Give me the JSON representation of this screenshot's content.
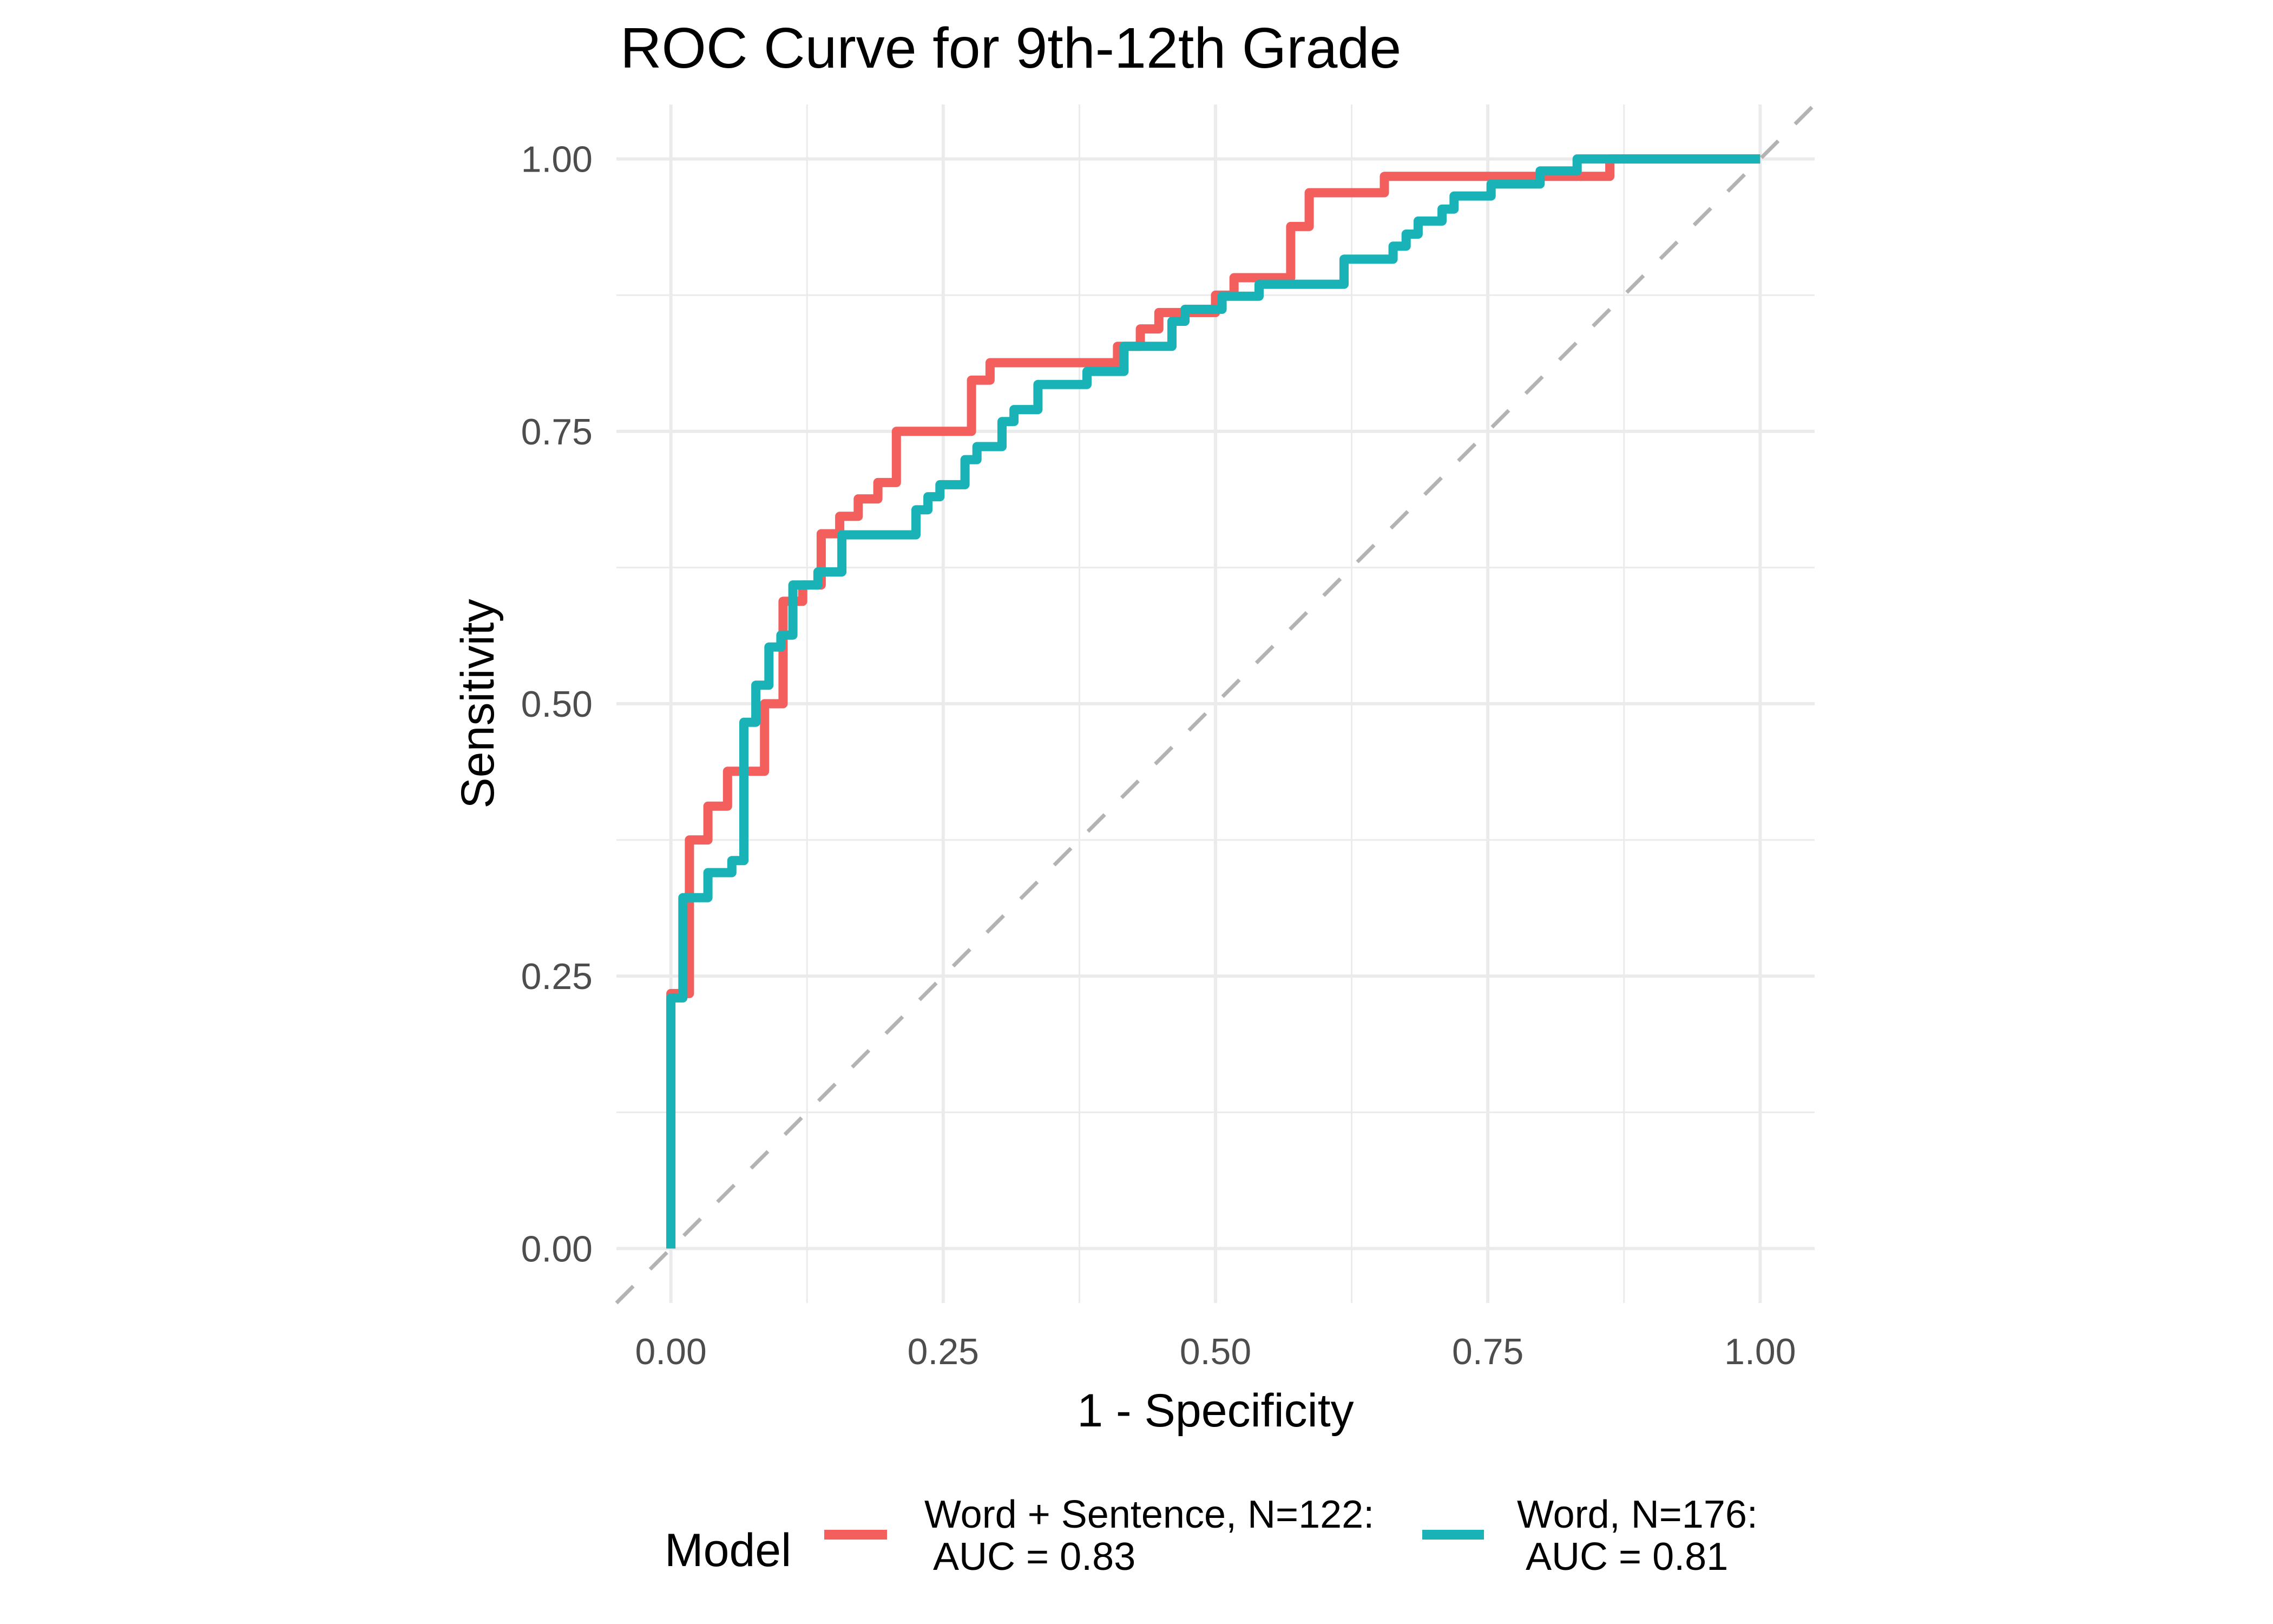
{
  "chart_data": {
    "type": "line",
    "subtype": "step",
    "title": "ROC Curve for 9th-12th Grade",
    "xlabel": "1 - Specificity",
    "ylabel": "Sensitivity",
    "xlim": [
      -0.05,
      1.05
    ],
    "ylim": [
      -0.05,
      1.05
    ],
    "grid": true,
    "x_ticks": [
      0,
      0.25,
      0.5,
      0.75,
      1
    ],
    "x_tick_labels": [
      "0.00",
      "0.25",
      "0.50",
      "0.75",
      "1.00"
    ],
    "y_ticks": [
      0,
      0.25,
      0.5,
      0.75,
      1
    ],
    "y_tick_labels": [
      "0.00",
      "0.25",
      "0.50",
      "0.75",
      "1.00"
    ],
    "reference_line": {
      "from": [
        -0.05,
        -0.05
      ],
      "to": [
        1.05,
        1.05
      ],
      "style": "dashed",
      "color": "#B3B3B3"
    },
    "legend": {
      "title": "Model",
      "placement": "bottom",
      "entries": [
        {
          "line1": "Word + Sentence, N=122:",
          "line2": " AUC = 0.83",
          "color": "#F35F5C"
        },
        {
          "line1": "Word, N=176:",
          "line2": " AUC = 0.81",
          "color": "#19B3B7"
        }
      ]
    },
    "series": [
      {
        "name": "Word + Sentence, N=122",
        "auc": 0.83,
        "color": "#F35F5C",
        "points": [
          [
            0,
            0
          ],
          [
            0,
            0.234
          ],
          [
            0.017,
            0.234
          ],
          [
            0.017,
            0.375
          ],
          [
            0.034,
            0.375
          ],
          [
            0.034,
            0.406
          ],
          [
            0.052,
            0.406
          ],
          [
            0.052,
            0.438
          ],
          [
            0.086,
            0.438
          ],
          [
            0.086,
            0.5
          ],
          [
            0.103,
            0.5
          ],
          [
            0.103,
            0.594
          ],
          [
            0.121,
            0.594
          ],
          [
            0.121,
            0.609
          ],
          [
            0.138,
            0.609
          ],
          [
            0.138,
            0.656
          ],
          [
            0.155,
            0.656
          ],
          [
            0.155,
            0.672
          ],
          [
            0.172,
            0.672
          ],
          [
            0.172,
            0.688
          ],
          [
            0.19,
            0.688
          ],
          [
            0.19,
            0.703
          ],
          [
            0.207,
            0.703
          ],
          [
            0.207,
            0.75
          ],
          [
            0.276,
            0.75
          ],
          [
            0.276,
            0.797
          ],
          [
            0.293,
            0.797
          ],
          [
            0.293,
            0.813
          ],
          [
            0.41,
            0.813
          ],
          [
            0.41,
            0.828
          ],
          [
            0.431,
            0.828
          ],
          [
            0.431,
            0.844
          ],
          [
            0.448,
            0.844
          ],
          [
            0.448,
            0.859
          ],
          [
            0.5,
            0.859
          ],
          [
            0.5,
            0.875
          ],
          [
            0.517,
            0.875
          ],
          [
            0.517,
            0.891
          ],
          [
            0.569,
            0.891
          ],
          [
            0.569,
            0.938
          ],
          [
            0.586,
            0.938
          ],
          [
            0.586,
            0.969
          ],
          [
            0.655,
            0.969
          ],
          [
            0.655,
            0.984
          ],
          [
            0.862,
            0.984
          ],
          [
            0.862,
            1.0
          ],
          [
            1.0,
            1.0
          ]
        ]
      },
      {
        "name": "Word, N=176",
        "auc": 0.81,
        "color": "#19B3B7",
        "points": [
          [
            0,
            0
          ],
          [
            0,
            0.23
          ],
          [
            0.011,
            0.23
          ],
          [
            0.011,
            0.322
          ],
          [
            0.034,
            0.322
          ],
          [
            0.034,
            0.345
          ],
          [
            0.056,
            0.345
          ],
          [
            0.056,
            0.356
          ],
          [
            0.067,
            0.356
          ],
          [
            0.067,
            0.483
          ],
          [
            0.078,
            0.483
          ],
          [
            0.078,
            0.517
          ],
          [
            0.09,
            0.517
          ],
          [
            0.09,
            0.552
          ],
          [
            0.101,
            0.552
          ],
          [
            0.101,
            0.563
          ],
          [
            0.112,
            0.563
          ],
          [
            0.112,
            0.609
          ],
          [
            0.135,
            0.609
          ],
          [
            0.135,
            0.621
          ],
          [
            0.157,
            0.621
          ],
          [
            0.157,
            0.655
          ],
          [
            0.225,
            0.655
          ],
          [
            0.225,
            0.678
          ],
          [
            0.236,
            0.678
          ],
          [
            0.236,
            0.69
          ],
          [
            0.247,
            0.69
          ],
          [
            0.247,
            0.701
          ],
          [
            0.27,
            0.701
          ],
          [
            0.27,
            0.724
          ],
          [
            0.281,
            0.724
          ],
          [
            0.281,
            0.736
          ],
          [
            0.304,
            0.736
          ],
          [
            0.304,
            0.759
          ],
          [
            0.315,
            0.759
          ],
          [
            0.315,
            0.77
          ],
          [
            0.337,
            0.77
          ],
          [
            0.337,
            0.793
          ],
          [
            0.382,
            0.793
          ],
          [
            0.382,
            0.805
          ],
          [
            0.416,
            0.805
          ],
          [
            0.416,
            0.828
          ],
          [
            0.46,
            0.828
          ],
          [
            0.46,
            0.851
          ],
          [
            0.472,
            0.851
          ],
          [
            0.472,
            0.862
          ],
          [
            0.506,
            0.862
          ],
          [
            0.506,
            0.874
          ],
          [
            0.54,
            0.874
          ],
          [
            0.54,
            0.885
          ],
          [
            0.618,
            0.885
          ],
          [
            0.618,
            0.908
          ],
          [
            0.663,
            0.908
          ],
          [
            0.663,
            0.92
          ],
          [
            0.675,
            0.92
          ],
          [
            0.675,
            0.931
          ],
          [
            0.686,
            0.931
          ],
          [
            0.686,
            0.943
          ],
          [
            0.708,
            0.943
          ],
          [
            0.708,
            0.954
          ],
          [
            0.719,
            0.954
          ],
          [
            0.719,
            0.966
          ],
          [
            0.753,
            0.966
          ],
          [
            0.753,
            0.977
          ],
          [
            0.798,
            0.977
          ],
          [
            0.798,
            0.989
          ],
          [
            0.832,
            0.989
          ],
          [
            0.832,
            1.0
          ],
          [
            1.0,
            1.0
          ]
        ]
      }
    ]
  }
}
